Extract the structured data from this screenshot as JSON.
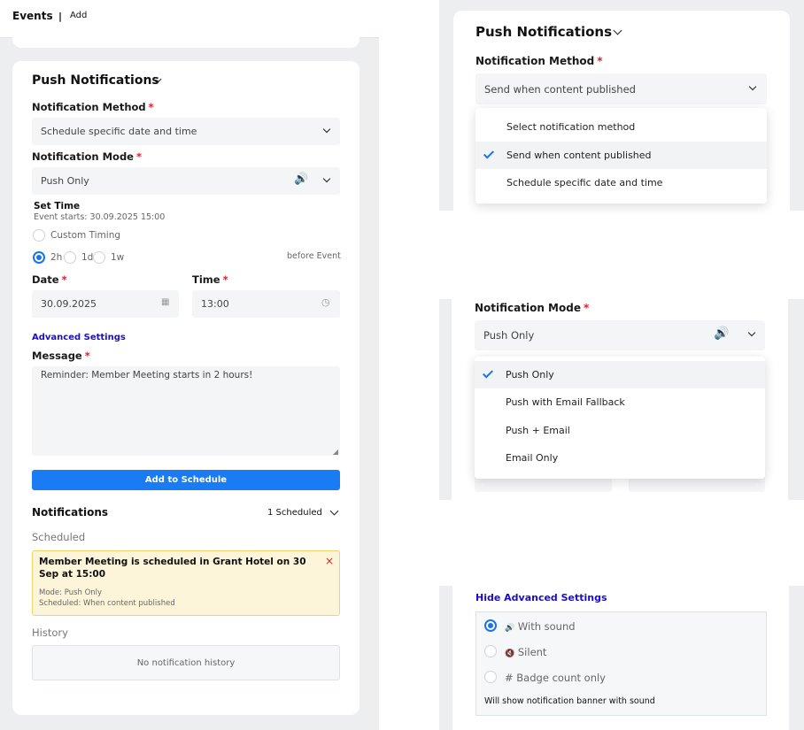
{
  "header": {
    "title": "Events",
    "separator": "|",
    "action": "Add"
  },
  "left": {
    "section_title": "Push Notifications",
    "method_label": "Notification Method",
    "method_value": "Schedule specific date and time",
    "mode_label": "Notification Mode",
    "mode_value": "Push Only",
    "set_time_label": "Set Time",
    "event_starts": "Event starts: 30.09.2025 15:00",
    "custom_timing": "Custom Timing",
    "presets": [
      {
        "label": "2h",
        "selected": true
      },
      {
        "label": "1d",
        "selected": false
      },
      {
        "label": "1w",
        "selected": false
      }
    ],
    "before_event": "before Event",
    "date_label": "Date",
    "date_value": "30.09.2025",
    "time_label": "Time",
    "time_value": "13:00",
    "advanced_link": "Advanced Settings",
    "message_label": "Message",
    "message_value": "Reminder: Member Meeting starts in 2 hours!",
    "add_button": "Add to Schedule",
    "notifications_title": "Notifications",
    "scheduled_count": "1 Scheduled",
    "scheduled_heading": "Scheduled",
    "scheduled_item": {
      "title": "Member Meeting is scheduled in Grant Hotel on 30 Sep at 15:00",
      "mode": "Mode: Push Only",
      "scheduled": "Scheduled: When content published"
    },
    "history_heading": "History",
    "history_empty": "No notification history"
  },
  "method_dropdown": {
    "section_title": "Push Notifications",
    "label": "Notification Method",
    "value": "Send when content published",
    "options": [
      {
        "label": "Select notification method",
        "selected": false
      },
      {
        "label": "Send when content published",
        "selected": true
      },
      {
        "label": "Schedule specific date and time",
        "selected": false
      }
    ]
  },
  "mode_dropdown": {
    "label": "Notification Mode",
    "value": "Push Only",
    "options": [
      {
        "label": "Push Only",
        "selected": true
      },
      {
        "label": "Push with Email Fallback",
        "selected": false
      },
      {
        "label": "Push + Email",
        "selected": false
      },
      {
        "label": "Email Only",
        "selected": false
      }
    ]
  },
  "advanced": {
    "link": "Hide Advanced Settings",
    "options": [
      {
        "icon": "🔊",
        "label": "With sound",
        "selected": true
      },
      {
        "icon": "🔇",
        "label": "Silent",
        "selected": false
      },
      {
        "icon": "#",
        "label": "Badge count only",
        "selected": false
      }
    ],
    "hint": "Will show notification banner with sound"
  },
  "colors": {
    "accent": "#1a73e8",
    "link": "#1a0dcc",
    "required": "#e01e2e",
    "warning_bg": "#fdf5d9",
    "warning_border": "#f2d36b"
  }
}
